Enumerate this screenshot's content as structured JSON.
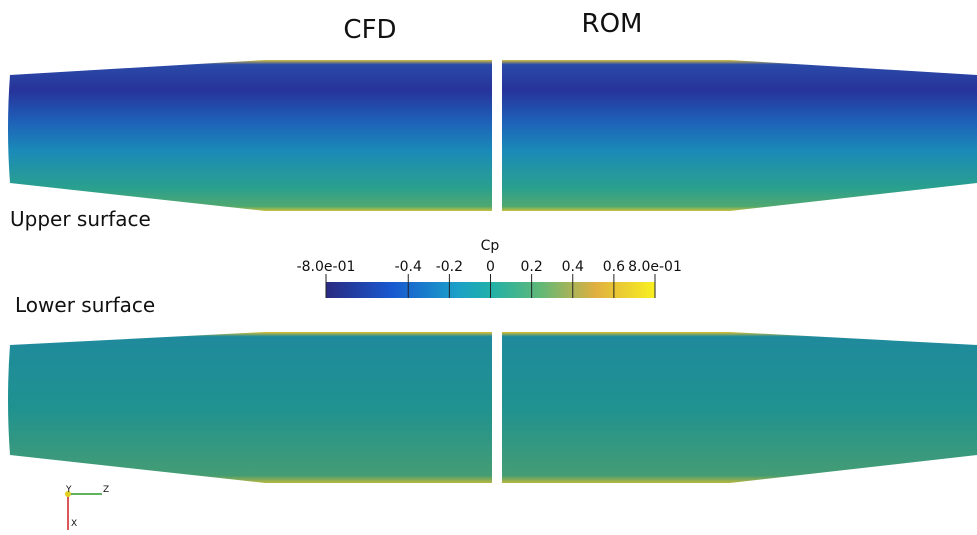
{
  "columns": [
    "CFD",
    "ROM"
  ],
  "rows": [
    "Upper surface",
    "Lower surface"
  ],
  "colorbar": {
    "title": "Cp",
    "range": [
      -0.8,
      0.8
    ],
    "ticks": [
      {
        "value": -0.8,
        "label": "-8.0e-01"
      },
      -0.4,
      -0.2,
      0,
      0.2,
      0.4,
      0.6,
      {
        "value": 0.8,
        "label": "8.0e-01"
      }
    ]
  },
  "axes_triad": [
    "Y",
    "Z",
    "X"
  ]
}
